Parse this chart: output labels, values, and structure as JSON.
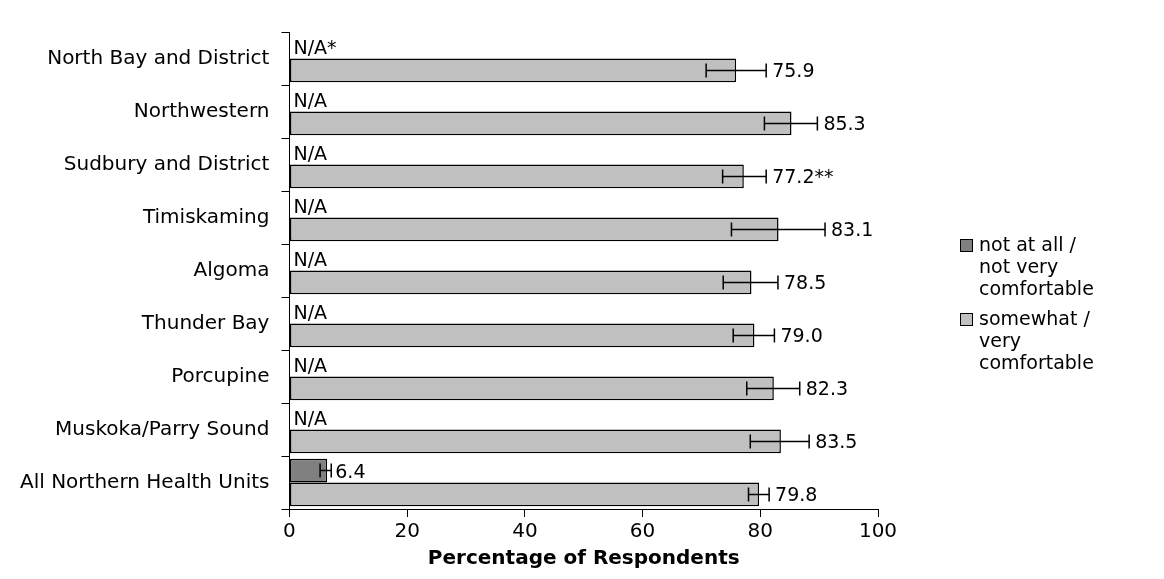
{
  "chart_data": {
    "type": "bar",
    "orientation": "horizontal",
    "xlabel": "Percentage of Respondents",
    "categories": [
      "North Bay and District",
      "Northwestern",
      "Sudbury and District",
      "Timiskaming",
      "Algoma",
      "Thunder Bay",
      "Porcupine",
      "Muskoka/Parry Sound",
      "All Northern Health Units"
    ],
    "series": [
      {
        "name": "not at all / not very comfortable",
        "color": "#808080",
        "values": [
          null,
          null,
          null,
          null,
          null,
          null,
          null,
          null,
          6.4
        ],
        "errors": [
          null,
          null,
          null,
          null,
          null,
          null,
          null,
          null,
          [
            5.2,
            7.1
          ]
        ],
        "value_labels": [
          "N/A*",
          "N/A",
          "N/A",
          "N/A",
          "N/A",
          "N/A",
          "N/A",
          "N/A",
          "6.4"
        ]
      },
      {
        "name": "somewhat / very comfortable",
        "color": "#c0c0c0",
        "values": [
          75.9,
          85.3,
          77.2,
          83.1,
          78.5,
          79.0,
          82.3,
          83.5,
          79.8
        ],
        "errors": [
          [
            70.8,
            81.0
          ],
          [
            80.7,
            89.7
          ],
          [
            73.6,
            81.0
          ],
          [
            75.1,
            91.0
          ],
          [
            73.7,
            83.0
          ],
          [
            75.4,
            82.4
          ],
          [
            77.7,
            86.7
          ],
          [
            78.3,
            88.3
          ],
          [
            78.0,
            81.5
          ]
        ],
        "value_labels": [
          "75.9",
          "85.3",
          "77.2**",
          "83.1",
          "78.5",
          "79.0",
          "82.3",
          "83.5",
          "79.8"
        ]
      }
    ],
    "xlim": [
      0,
      100
    ],
    "xticks": [
      0,
      20,
      40,
      60,
      80,
      100
    ],
    "grid": false,
    "legend": "right"
  }
}
